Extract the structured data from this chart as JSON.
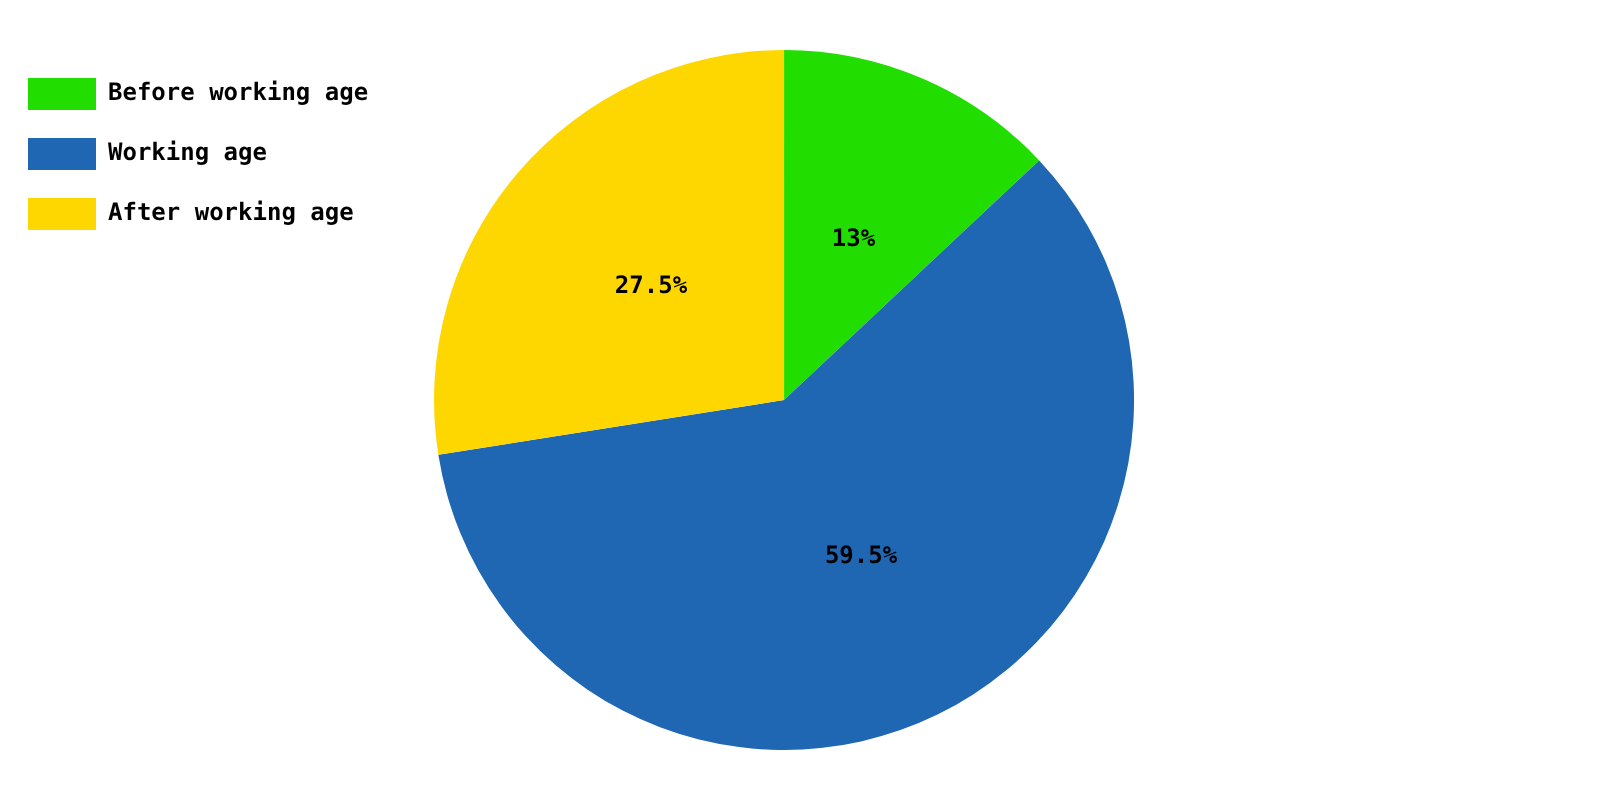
{
  "chart_data": {
    "type": "pie",
    "categories": [
      "Before working age",
      "Working age",
      "After working age"
    ],
    "values": [
      13,
      59.5,
      27.5
    ],
    "colors": [
      "#22dd00",
      "#1f66b3",
      "#ffd700"
    ],
    "value_labels": [
      "13%",
      "59.5%",
      "27.5%"
    ],
    "legend": "top left"
  }
}
